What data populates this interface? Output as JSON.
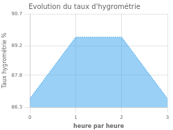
{
  "chart_data": {
    "type": "area",
    "title": "Evolution du taux d'hygrométrie",
    "xlabel": "heure par heure",
    "ylabel": "Taux hygrométrie %",
    "x": [
      0,
      1,
      2,
      3
    ],
    "values": [
      86.7,
      89.6,
      89.6,
      86.7
    ],
    "xlim": [
      0,
      3
    ],
    "ylim": [
      86.3,
      90.7
    ],
    "xticks": [
      0,
      1,
      2,
      3
    ],
    "yticks": [
      86.3,
      87.8,
      89.2,
      90.7
    ],
    "grid": true,
    "line_style": "dotted"
  }
}
